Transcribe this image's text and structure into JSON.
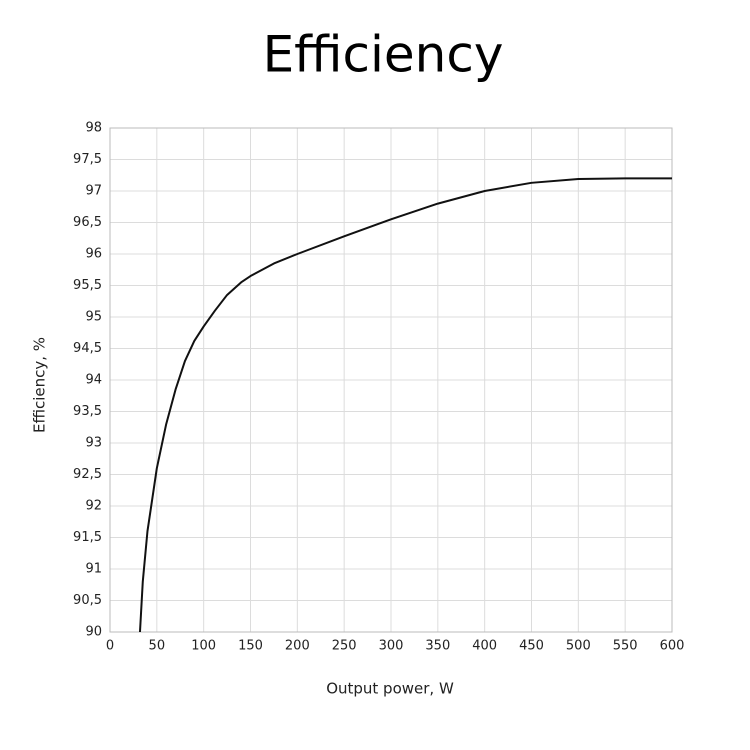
{
  "chart_data": {
    "type": "line",
    "title": "Efficiency",
    "x_label": "Output power, W",
    "y_label": "Efficiency, %",
    "x": [
      32,
      35,
      40,
      50,
      60,
      70,
      80,
      90,
      100,
      112,
      125,
      140,
      150,
      175,
      200,
      250,
      300,
      350,
      400,
      450,
      500,
      550,
      600
    ],
    "series": [
      {
        "color": "#111111",
        "values": [
          90,
          90.8,
          91.6,
          92.6,
          93.3,
          93.85,
          94.3,
          94.62,
          94.85,
          95.1,
          95.35,
          95.55,
          95.65,
          95.85,
          96.0,
          96.28,
          96.55,
          96.8,
          97.0,
          97.13,
          97.19,
          97.2,
          97.2
        ]
      }
    ],
    "xlim": [
      0,
      600
    ],
    "xticks": [
      0,
      50,
      100,
      150,
      200,
      250,
      300,
      350,
      400,
      450,
      500,
      550,
      600
    ],
    "ylim": [
      90,
      98
    ],
    "yticks": [
      90,
      {
        "value": 90.5,
        "label": "90,5"
      },
      91,
      {
        "value": 91.5,
        "label": "91,5"
      },
      92,
      {
        "value": 92.5,
        "label": "92,5"
      },
      93,
      {
        "value": 93.5,
        "label": "93,5"
      },
      94,
      {
        "value": 94.5,
        "label": "94,5"
      },
      95,
      {
        "value": 95.5,
        "label": "95,5"
      },
      96,
      {
        "value": 96.5,
        "label": "96,5"
      },
      97,
      {
        "value": 97.5,
        "label": "97,5"
      },
      98
    ],
    "grid": true
  }
}
